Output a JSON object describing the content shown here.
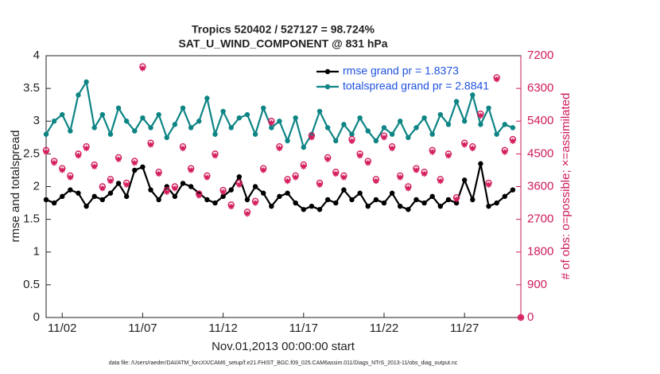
{
  "chart_data": {
    "type": "line",
    "title": "Tropics 520402 / 527127 = 98.724%",
    "subtitle": "SAT_U_WIND_COMPONENT @ 831 hPa",
    "xlabel": "Nov.01,2013 00:00:00 start",
    "ylabel": "rmse and totalspread",
    "y2label": "# of obs: o=possible; ×=assimilated",
    "footnote": "data file: /Users/raeder/DAI/ATM_forcXX/CAM6_setup/f.e21.FHIST_BGC.f09_025.CAM6assim.011/Diags_NTrS_2013-11/obs_diag_output.nc",
    "x": [
      0,
      0.5,
      1,
      1.5,
      2,
      2.5,
      3,
      3.5,
      4,
      4.5,
      5,
      5.5,
      6,
      6.5,
      7,
      7.5,
      8,
      8.5,
      9,
      9.5,
      10,
      10.5,
      11,
      11.5,
      12,
      12.5,
      13,
      13.5,
      14,
      14.5,
      15,
      15.5,
      16,
      16.5,
      17,
      17.5,
      18,
      18.5,
      19,
      19.5,
      20,
      20.5,
      21,
      21.5,
      22,
      22.5,
      23,
      23.5,
      24,
      24.5,
      25,
      25.5,
      26,
      26.5,
      27,
      27.5,
      28,
      28.5,
      29,
      29.5
    ],
    "xlim": [
      0,
      29.5
    ],
    "xticks": [
      {
        "value": 1,
        "label": "11/02"
      },
      {
        "value": 6,
        "label": "11/07"
      },
      {
        "value": 11,
        "label": "11/12"
      },
      {
        "value": 16,
        "label": "11/17"
      },
      {
        "value": 21,
        "label": "11/22"
      },
      {
        "value": 26,
        "label": "11/27"
      }
    ],
    "ylim": [
      0,
      4
    ],
    "yticks": [
      0,
      0.5,
      1,
      1.5,
      2,
      2.5,
      3,
      3.5,
      4
    ],
    "y2lim": [
      0,
      7200
    ],
    "y2ticks": [
      0,
      900,
      1800,
      2700,
      3600,
      4500,
      5400,
      6300,
      7200
    ],
    "y2color": "#cc1a5c",
    "legend": "upper right",
    "series": [
      {
        "name": "rmse grand pr = 1.8373",
        "color": "#000000",
        "marker": "dot",
        "values": [
          1.8,
          1.75,
          1.85,
          1.95,
          1.9,
          1.7,
          1.85,
          1.8,
          1.9,
          2.05,
          1.85,
          2.25,
          2.3,
          1.95,
          1.8,
          2.0,
          1.85,
          2.05,
          2.0,
          1.9,
          1.8,
          1.75,
          1.85,
          1.95,
          2.15,
          1.8,
          2.0,
          1.9,
          1.7,
          1.85,
          1.9,
          1.75,
          1.65,
          1.7,
          1.65,
          1.8,
          1.75,
          1.95,
          1.8,
          1.9,
          1.7,
          1.8,
          1.75,
          1.9,
          1.7,
          1.65,
          1.8,
          1.75,
          1.85,
          1.7,
          1.8,
          1.75,
          2.1,
          1.8,
          2.35,
          1.7,
          1.75,
          1.85,
          1.95,
          null
        ]
      },
      {
        "name": "totalspread grand pr = 2.8841",
        "color": "#0e8484",
        "marker": "dot",
        "values": [
          2.8,
          3.0,
          3.1,
          2.85,
          3.4,
          3.6,
          2.9,
          3.1,
          2.8,
          3.2,
          3.0,
          2.85,
          3.05,
          2.9,
          3.1,
          2.75,
          2.95,
          3.2,
          2.9,
          3.0,
          3.35,
          2.8,
          3.15,
          2.9,
          3.05,
          3.1,
          2.8,
          3.2,
          2.9,
          3.0,
          2.7,
          3.05,
          2.6,
          2.8,
          3.15,
          2.9,
          2.7,
          2.95,
          2.8,
          3.05,
          2.85,
          2.7,
          2.9,
          2.8,
          3.0,
          2.75,
          2.9,
          3.05,
          2.8,
          3.1,
          2.95,
          3.3,
          3.0,
          3.4,
          2.95,
          3.2,
          2.8,
          2.95,
          2.9,
          null
        ]
      },
      {
        "color": "#d41c5e",
        "marker": "circle",
        "axis": "y2",
        "values": [
          4600,
          4300,
          4100,
          3900,
          4500,
          4700,
          4200,
          3600,
          3800,
          4400,
          3700,
          4300,
          6900,
          4800,
          4000,
          3500,
          3600,
          4700,
          4100,
          3400,
          3900,
          4500,
          3500,
          3100,
          3700,
          2900,
          3200,
          4100,
          5400,
          4700,
          3800,
          3900,
          4200,
          5000,
          3700,
          4400,
          4000,
          3900,
          4900,
          4500,
          4300,
          3800,
          5000,
          4700,
          3900,
          3600,
          4100,
          4000,
          4600,
          3800,
          4500,
          3300,
          4800,
          4700,
          5600,
          3700,
          6600,
          4600,
          4900,
          0
        ]
      },
      {
        "color": "#d41c5e",
        "marker": "asterisk",
        "axis": "y2",
        "values": [
          4550,
          4250,
          4050,
          3850,
          4450,
          4650,
          4150,
          3550,
          3750,
          4350,
          3650,
          4250,
          6850,
          4750,
          3950,
          3450,
          3550,
          4650,
          4050,
          3350,
          3850,
          4450,
          3450,
          3050,
          3650,
          2850,
          3150,
          4050,
          5350,
          4650,
          3750,
          3850,
          4150,
          4950,
          3650,
          4350,
          3950,
          3850,
          4850,
          4450,
          4250,
          3750,
          4950,
          4650,
          3850,
          3550,
          4050,
          3950,
          4550,
          3750,
          4450,
          3250,
          4750,
          4650,
          5550,
          3650,
          6550,
          4550,
          4850,
          0
        ]
      }
    ]
  }
}
